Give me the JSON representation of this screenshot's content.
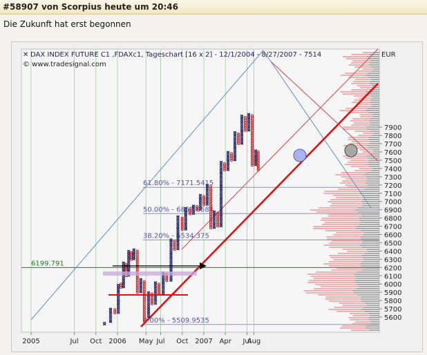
{
  "post": {
    "title": "#58907 von Scorpius heute um 20:46",
    "subtitle": "Die Zukunft hat erst begonnen"
  },
  "chart_data": {
    "type": "point-and-figure",
    "title": "DAX INDEX FUTURE C1 ,FDAXc1, Tageschart [16 x 2] - 12/1/2004 - 8/27/2007 - 7514",
    "watermark": "© www.tradesignal.com",
    "y_unit": "EUR",
    "y_ticks": [
      5600,
      5700,
      5800,
      5900,
      6000,
      6100,
      6200,
      6300,
      6400,
      6500,
      6600,
      6700,
      6800,
      6900,
      7000,
      7100,
      7200,
      7300,
      7400,
      7500,
      7600,
      7700,
      7800,
      7900
    ],
    "x_ticks": [
      {
        "label": "2005",
        "t": 2005.0
      },
      {
        "label": "Jul",
        "t": 2005.5
      },
      {
        "label": "Oct",
        "t": 2005.75
      },
      {
        "label": "2006",
        "t": 2006.0
      },
      {
        "label": "May",
        "t": 2006.33
      },
      {
        "label": "Jul",
        "t": 2006.5
      },
      {
        "label": "Oct",
        "t": 2006.75
      },
      {
        "label": "2007",
        "t": 2007.0
      },
      {
        "label": "Apr",
        "t": 2007.25
      },
      {
        "label": "Jul",
        "t": 2007.5
      },
      {
        "label": "Aug",
        "t": 2007.58
      }
    ],
    "fib_levels": [
      {
        "label": "61.80% - 7171.5415",
        "value": 7171.5
      },
      {
        "label": "50.00% - 6852.6584",
        "value": 6852.7
      },
      {
        "label": "38.20% - 6534.375",
        "value": 6534.4
      },
      {
        "label": "0.00% - 5509.9535",
        "value": 5510
      }
    ],
    "support_level": {
      "label": "6199.791",
      "value": 6199.8
    },
    "columns": [
      {
        "t": 2005.85,
        "type": "X",
        "low": 5510,
        "high": 5540
      },
      {
        "t": 2005.92,
        "type": "X",
        "low": 5540,
        "high": 5700
      },
      {
        "t": 2005.97,
        "type": "O",
        "low": 5650,
        "high": 5700
      },
      {
        "t": 2006.01,
        "type": "X",
        "low": 5650,
        "high": 5990
      },
      {
        "t": 2006.04,
        "type": "O",
        "low": 5960,
        "high": 6000
      },
      {
        "t": 2006.07,
        "type": "X",
        "low": 5960,
        "high": 6260
      },
      {
        "t": 2006.1,
        "type": "O",
        "low": 6100,
        "high": 6250
      },
      {
        "t": 2006.13,
        "type": "X",
        "low": 6100,
        "high": 6400
      },
      {
        "t": 2006.16,
        "type": "O",
        "low": 6300,
        "high": 6380
      },
      {
        "t": 2006.19,
        "type": "X",
        "low": 6300,
        "high": 6430
      },
      {
        "t": 2006.23,
        "type": "O",
        "low": 5900,
        "high": 6410
      },
      {
        "t": 2006.27,
        "type": "X",
        "low": 5900,
        "high": 6060
      },
      {
        "t": 2006.31,
        "type": "O",
        "low": 5550,
        "high": 6040
      },
      {
        "t": 2006.36,
        "type": "X",
        "low": 5600,
        "high": 5900
      },
      {
        "t": 2006.4,
        "type": "O",
        "low": 5760,
        "high": 5880
      },
      {
        "t": 2006.44,
        "type": "X",
        "low": 5760,
        "high": 6020
      },
      {
        "t": 2006.48,
        "type": "O",
        "low": 5880,
        "high": 6000
      },
      {
        "t": 2006.53,
        "type": "X",
        "low": 5880,
        "high": 6140
      },
      {
        "t": 2006.57,
        "type": "O",
        "low": 6040,
        "high": 6120
      },
      {
        "t": 2006.62,
        "type": "X",
        "low": 6040,
        "high": 6550
      },
      {
        "t": 2006.66,
        "type": "O",
        "low": 6420,
        "high": 6530
      },
      {
        "t": 2006.7,
        "type": "X",
        "low": 6420,
        "high": 6820
      },
      {
        "t": 2006.75,
        "type": "O",
        "low": 6660,
        "high": 6800
      },
      {
        "t": 2006.79,
        "type": "X",
        "low": 6660,
        "high": 6930
      },
      {
        "t": 2006.84,
        "type": "O",
        "low": 6850,
        "high": 6920
      },
      {
        "t": 2006.88,
        "type": "X",
        "low": 6850,
        "high": 6960
      },
      {
        "t": 2006.92,
        "type": "O",
        "low": 6900,
        "high": 6940
      },
      {
        "t": 2006.96,
        "type": "X",
        "low": 6900,
        "high": 7080
      },
      {
        "t": 2007.0,
        "type": "O",
        "low": 6960,
        "high": 7060
      },
      {
        "t": 2007.04,
        "type": "X",
        "low": 6960,
        "high": 7200
      },
      {
        "t": 2007.08,
        "type": "O",
        "low": 6680,
        "high": 7180
      },
      {
        "t": 2007.12,
        "type": "X",
        "low": 6680,
        "high": 6880
      },
      {
        "t": 2007.16,
        "type": "O",
        "low": 6700,
        "high": 6860
      },
      {
        "t": 2007.2,
        "type": "X",
        "low": 6700,
        "high": 7480
      },
      {
        "t": 2007.24,
        "type": "O",
        "low": 7380,
        "high": 7460
      },
      {
        "t": 2007.28,
        "type": "X",
        "low": 7380,
        "high": 7600
      },
      {
        "t": 2007.32,
        "type": "O",
        "low": 7500,
        "high": 7580
      },
      {
        "t": 2007.36,
        "type": "X",
        "low": 7500,
        "high": 7840
      },
      {
        "t": 2007.4,
        "type": "O",
        "low": 7700,
        "high": 7820
      },
      {
        "t": 2007.44,
        "type": "X",
        "low": 7700,
        "high": 8040
      },
      {
        "t": 2007.48,
        "type": "O",
        "low": 7860,
        "high": 8020
      },
      {
        "t": 2007.52,
        "type": "X",
        "low": 7860,
        "high": 8060
      },
      {
        "t": 2007.56,
        "type": "O",
        "low": 7440,
        "high": 8040
      },
      {
        "t": 2007.6,
        "type": "X",
        "low": 7440,
        "high": 7620
      },
      {
        "t": 2007.63,
        "type": "O",
        "low": 7380,
        "high": 7600
      }
    ],
    "colors": {
      "x_mark": "#1a1e5c",
      "o_mark": "#d22020",
      "trend_main": "#e01010",
      "trend_thin": "#e04040",
      "channel_blue": "#5f8fbf",
      "fib_line": "#8e8ec8",
      "support_green": "#1e7a1e",
      "grid_green": "#b4d2b4",
      "volume_red": "#f0b0b0",
      "volume_gray": "#a8a8a8"
    }
  }
}
